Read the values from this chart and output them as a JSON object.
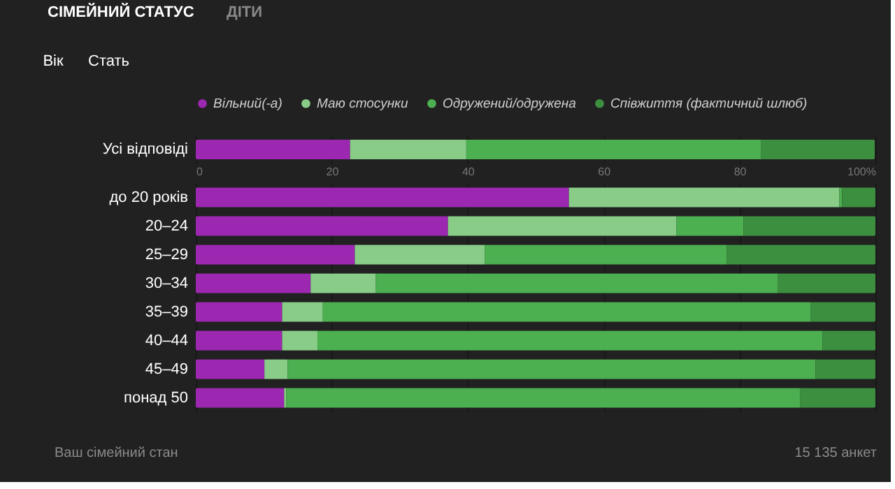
{
  "chart_data": [
    {
      "type": "bar",
      "orientation": "horizontal",
      "stacked": true,
      "categories": [
        "Усі відповіді"
      ],
      "series": [
        {
          "name": "Вільний(-а)",
          "color": "#9c27b0",
          "values": [
            22.7
          ]
        },
        {
          "name": "Маю стосунки",
          "color": "#88cc88",
          "values": [
            17.1
          ]
        },
        {
          "name": "Одружений/одружена",
          "color": "#4caf50",
          "values": [
            43.4
          ]
        },
        {
          "name": "Співжиття (фактичний шлюб)",
          "color": "#3d8f40",
          "values": [
            16.7
          ]
        }
      ],
      "xlim": [
        0,
        100
      ],
      "xticks": [
        0,
        20,
        40,
        60,
        80,
        {
          "value": 100,
          "label": "100%"
        }
      ],
      "grid": "x",
      "legend": "top",
      "annotations": [
        "СІМЕЙНИЙ СТАТУС",
        "ДІТИ",
        "Вік",
        "Стать"
      ]
    },
    {
      "type": "bar",
      "orientation": "horizontal",
      "stacked": true,
      "categories": [
        "до 20 років",
        "20–24",
        "25–29",
        "30–34",
        "35–39",
        "40–44",
        "45–49",
        "понад 50"
      ],
      "series": [
        {
          "color": "#9c27b0",
          "values": [
            54.9,
            37.1,
            23.4,
            16.9,
            12.7,
            12.7,
            10.1,
            13.0
          ]
        },
        {
          "color": "#88cc88",
          "values": [
            39.8,
            33.6,
            19.1,
            9.6,
            6.0,
            5.2,
            3.4,
            0.3
          ]
        },
        {
          "color": "#4caf50",
          "values": [
            0.4,
            9.9,
            35.6,
            59.1,
            71.8,
            74.3,
            77.7,
            75.6
          ]
        },
        {
          "color": "#3d8f40",
          "values": [
            4.9,
            19.4,
            21.9,
            14.4,
            9.5,
            7.8,
            8.8,
            11.1
          ]
        }
      ],
      "xlim": [
        0,
        100
      ],
      "xticks": [
        0,
        20,
        40,
        60,
        80,
        100
      ],
      "grid": "x",
      "tick_labels": "y",
      "annotations": [
        "Ваш сімейний стан",
        "15 135 анкет"
      ]
    }
  ]
}
